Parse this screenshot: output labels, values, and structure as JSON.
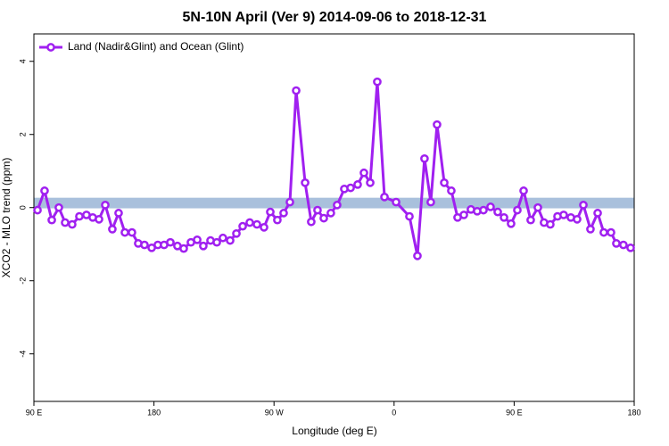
{
  "chart_data": {
    "type": "line",
    "title": "5N-10N April (Ver 9)   2014-09-06 to 2018-12-31",
    "x_label": "Longitude (deg E)",
    "y_label": "XCO2 - MLO trend (ppm)",
    "xlim": [
      90,
      540
    ],
    "xticks": [
      {
        "value": 90,
        "label": "90 E"
      },
      180,
      {
        "value": 270,
        "label": "90 W"
      },
      {
        "value": 360,
        "label": "0"
      },
      {
        "value": 450,
        "label": "90 E"
      },
      {
        "value": 540,
        "label": "180"
      }
    ],
    "ylim": [
      -5.3,
      4.75
    ],
    "yticks": [
      -4,
      -2,
      0,
      2,
      4
    ],
    "reference_band": {
      "range": [
        -0.02,
        0.27
      ],
      "color": "#a9c0dc"
    },
    "legend": "top-left",
    "series": [
      {
        "name": "Land (Nadir&Glint) and Ocean (Glint)",
        "color": "#a020f0",
        "x": [
          92.7,
          98.0,
          103.4,
          108.7,
          113.4,
          118.7,
          124.1,
          129.4,
          134.1,
          138.8,
          143.5,
          148.8,
          153.5,
          158.2,
          163.5,
          168.2,
          172.9,
          178.3,
          182.9,
          187.6,
          192.3,
          197.6,
          202.3,
          207.7,
          212.4,
          217.0,
          222.4,
          227.1,
          231.7,
          237.1,
          241.8,
          246.5,
          251.8,
          257.2,
          262.5,
          267.2,
          272.5,
          277.2,
          281.9,
          286.6,
          293.3,
          297.9,
          302.6,
          307.3,
          312.6,
          317.3,
          322.7,
          327.4,
          332.7,
          337.4,
          342.1,
          347.4,
          352.8,
          361.5,
          371.5,
          377.5,
          382.8,
          387.5,
          392.2,
          397.6,
          402.9,
          407.6,
          412.3,
          417.6,
          422.3,
          427.0,
          432.3,
          437.7,
          442.4,
          447.7,
          452.4,
          457.1,
          462.4,
          467.8,
          472.4,
          477.1,
          482.5,
          487.1,
          492.5,
          497.2,
          501.9,
          507.2,
          512.6,
          517.2,
          522.6,
          526.6,
          531.9,
          537.3
        ],
        "values": [
          -0.07,
          0.46,
          -0.34,
          0,
          -0.41,
          -0.46,
          -0.24,
          -0.2,
          -0.27,
          -0.32,
          0.07,
          -0.59,
          -0.15,
          -0.68,
          -0.68,
          -0.98,
          -1.02,
          -1.1,
          -1.02,
          -1.02,
          -0.95,
          -1.05,
          -1.12,
          -0.95,
          -0.88,
          -1.05,
          -0.9,
          -0.95,
          -0.83,
          -0.9,
          -0.71,
          -0.51,
          -0.41,
          -0.46,
          -0.54,
          -0.12,
          -0.34,
          -0.15,
          0.15,
          3.2,
          0.68,
          -0.39,
          -0.07,
          -0.29,
          -0.15,
          0.07,
          0.51,
          0.54,
          0.63,
          0.95,
          0.68,
          3.44,
          0.29,
          0.15,
          -0.24,
          -1.32,
          1.34,
          0.15,
          2.27,
          0.68,
          0.46,
          -0.27,
          -0.2,
          -0.05,
          -0.1,
          -0.07,
          0.02,
          -0.12,
          -0.27,
          -0.44,
          -0.07,
          0.46,
          -0.34,
          0,
          -0.41,
          -0.46,
          -0.24,
          -0.2,
          -0.27,
          -0.32,
          0.07,
          -0.59,
          -0.15,
          -0.68,
          -0.68,
          -0.98,
          -1.02,
          -1.1
        ]
      }
    ]
  }
}
